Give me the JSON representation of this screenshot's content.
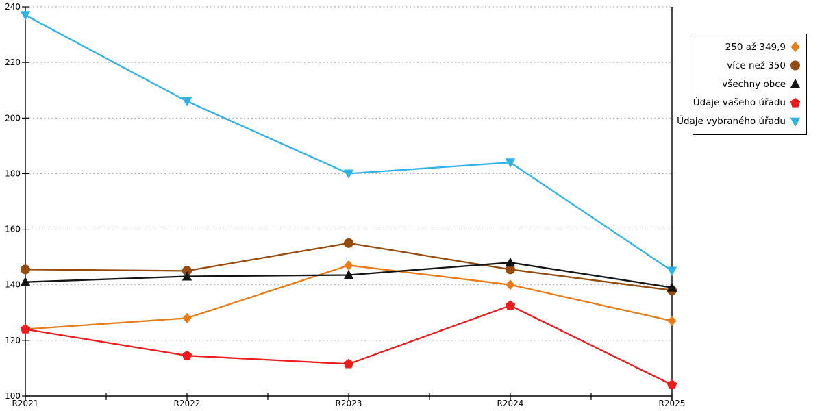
{
  "chart_data": {
    "type": "line",
    "title": "",
    "xlabel": "",
    "ylabel": "",
    "categories": [
      "R2021",
      "R2022",
      "R2023",
      "R2024",
      "R2025"
    ],
    "series": [
      {
        "name": "250 až 349,9",
        "marker": "diamond",
        "color": "#E87B17",
        "values": [
          124,
          128,
          147,
          140,
          127
        ]
      },
      {
        "name": "více než 350",
        "marker": "circle",
        "color": "#964B0E",
        "values": [
          145.5,
          145,
          155,
          145.5,
          138
        ]
      },
      {
        "name": "všechny obce",
        "marker": "triangle-up",
        "color": "#141414",
        "values": [
          141,
          143,
          143.5,
          148,
          139
        ]
      },
      {
        "name": "Údaje vašeho úřadu",
        "marker": "pentagon",
        "color": "#ED1B1B",
        "values": [
          124,
          114.5,
          111.5,
          132.5,
          104
        ]
      },
      {
        "name": "Údaje vybraného úřadu",
        "marker": "triangle-down",
        "color": "#2EB2E8",
        "values": [
          237,
          206,
          180,
          184,
          145
        ]
      }
    ],
    "ylim": [
      100,
      240
    ],
    "yticks": [
      100,
      120,
      140,
      160,
      180,
      200,
      220,
      240
    ],
    "grid": "dotted-horizontal",
    "grid_color": "#A3A3A3",
    "axis_color": "#000000",
    "legend_position": "right"
  }
}
